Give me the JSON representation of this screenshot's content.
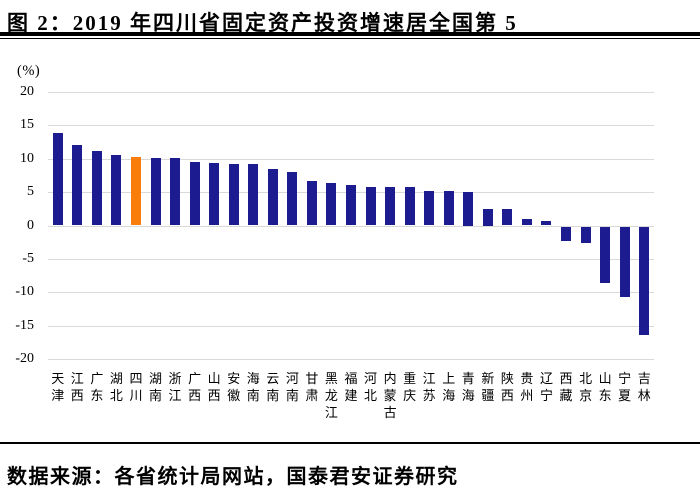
{
  "header": {
    "figure_title": "图 2：2019 年四川省固定资产投资增速居全国第 5"
  },
  "axis": {
    "unit_label": "(%)"
  },
  "chart_data": {
    "type": "bar",
    "title": "2019 年四川省固定资产投资增速居全国第 5",
    "categories": [
      "天津",
      "江西",
      "广东",
      "湖北",
      "四川",
      "湖南",
      "浙江",
      "广西",
      "山西",
      "安徽",
      "海南",
      "云南",
      "河南",
      "甘肃",
      "黑龙江",
      "福建",
      "河北",
      "内蒙古",
      "重庆",
      "江苏",
      "上海",
      "青海",
      "新疆",
      "陕西",
      "贵州",
      "辽宁",
      "西藏",
      "北京",
      "山东",
      "宁夏",
      "吉林"
    ],
    "values": [
      13.9,
      12.1,
      11.1,
      10.6,
      10.2,
      10.1,
      10.1,
      9.5,
      9.3,
      9.2,
      9.2,
      8.5,
      8.0,
      6.6,
      6.3,
      6.0,
      5.8,
      5.8,
      5.7,
      5.1,
      5.1,
      5.0,
      2.5,
      2.4,
      1.0,
      0.6,
      -2.2,
      -2.5,
      -8.4,
      -10.5,
      -16.3
    ],
    "highlight_category": "四川",
    "highlight_index": 4,
    "xlabel": "",
    "ylabel": "(%)",
    "ylim": [
      -20,
      20
    ],
    "yticks": [
      20,
      15,
      10,
      5,
      0,
      -5,
      -10,
      -15,
      -20
    ],
    "grid": true,
    "legend": false,
    "bar_color": "#1C1C90",
    "highlight_color": "#FA7D0A",
    "gridline_color": "#D9D9D9"
  },
  "source": {
    "text": "数据来源：各省统计局网站，国泰君安证券研究"
  }
}
